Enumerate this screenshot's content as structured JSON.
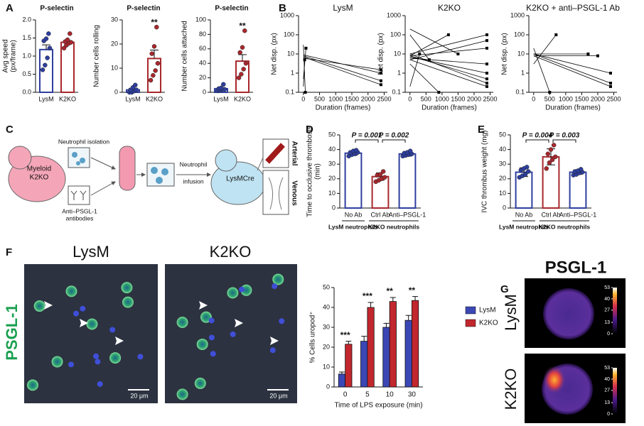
{
  "figure": {
    "panel_labels": [
      "A",
      "B",
      "C",
      "D",
      "E",
      "F",
      "G"
    ],
    "diagram": {
      "donor": [
        "Myeloid",
        "K2KO"
      ],
      "isolation": "Neutrophil isolation",
      "antibodies": [
        "Anti–PSGL-1",
        "antibodies"
      ],
      "infusion": [
        "Neutrophil",
        "infusion"
      ],
      "recipient": "LysMCre",
      "arterial": "Arterial",
      "venous": "Venous"
    },
    "micrographs": {
      "stain": "PSGL-1",
      "titles": [
        "LysM",
        "K2KO"
      ],
      "scale_bars": [
        "20 μm",
        "20 μm"
      ]
    },
    "heatmaps": {
      "title": "PSGL-1",
      "rows": [
        "LysM",
        "K2KO"
      ]
    }
  },
  "chart_data": [
    {
      "type": "bar",
      "title": "P-selectin",
      "ylabel": [
        "Avg speed",
        "(px/frame)"
      ],
      "categories": [
        "LysM",
        "K2KO"
      ],
      "values": [
        1.18,
        1.38
      ],
      "errors": [
        0.13,
        0.05
      ],
      "error_bars": "up",
      "points": [
        [
          0.62,
          0.75,
          0.95,
          1.22,
          1.42,
          1.48,
          1.62
        ],
        [
          1.22,
          1.3,
          1.35,
          1.38,
          1.4,
          1.45,
          1.62
        ]
      ],
      "colors": [
        "#2e3f9e",
        "#a8282d"
      ],
      "ylim": [
        0,
        2
      ],
      "yticks": [
        {
          "value": 0,
          "label": "0.0"
        },
        0.5,
        {
          "value": 1,
          "label": "1.0"
        },
        1.5,
        {
          "value": 2,
          "label": "2.0"
        }
      ]
    },
    {
      "type": "bar",
      "title": "P-selectin",
      "ylabel": [
        "Number cells rolling"
      ],
      "categories": [
        "LysM",
        "K2KO"
      ],
      "values": [
        1,
        14
      ],
      "errors": [
        0.6,
        3.5
      ],
      "error_bars": "up",
      "points": [
        [
          0,
          0,
          0.5,
          1,
          1,
          2,
          3
        ],
        [
          5,
          7,
          9,
          12,
          16,
          19,
          27
        ]
      ],
      "colors": [
        "#2e3f9e",
        "#a8282d"
      ],
      "significance": [
        null,
        "**"
      ],
      "ylim": [
        0,
        30
      ],
      "yticks": [
        0,
        10,
        20,
        30
      ]
    },
    {
      "type": "bar",
      "title": "P-selectin",
      "ylabel": [
        "Number cells attached"
      ],
      "categories": [
        "LysM",
        "K2KO"
      ],
      "values": [
        5,
        43
      ],
      "errors": [
        1.5,
        9
      ],
      "error_bars": "up",
      "points": [
        [
          2,
          3,
          4,
          4,
          5,
          6,
          11
        ],
        [
          20,
          25,
          32,
          40,
          55,
          62,
          85
        ]
      ],
      "colors": [
        "#2e3f9e",
        "#a8282d"
      ],
      "significance": [
        null,
        "**"
      ],
      "ylim": [
        0,
        100
      ],
      "yticks": [
        0,
        20,
        40,
        60,
        80,
        100
      ]
    },
    {
      "type": "line",
      "title": "LysM",
      "xlabel": "Duration (frames)",
      "ylabel": "Net disp. (px)",
      "log_y": true,
      "color": "#000000",
      "xlim": [
        -150,
        2600
      ],
      "xticks": [
        0,
        500,
        1000,
        1500,
        2000,
        2500
      ],
      "ylim": [
        0.1,
        1000
      ],
      "yticks": [
        0.1,
        1,
        10,
        100,
        1000
      ],
      "tracks": [
        {
          "x": [
            0,
            2400
          ],
          "values": [
            8,
            0.4
          ]
        },
        {
          "x": [
            0,
            2400
          ],
          "values": [
            7,
            0.25
          ]
        },
        {
          "x": [
            0,
            2400
          ],
          "values": [
            6,
            1.5
          ]
        },
        {
          "x": [
            0,
            2400
          ],
          "values": [
            9,
            1
          ]
        },
        {
          "x": [
            0,
            60
          ],
          "values": [
            30,
            0.1
          ]
        },
        {
          "x": [
            0,
            40
          ],
          "values": [
            0.2,
            5
          ]
        },
        {
          "x": [
            0,
            80
          ],
          "values": [
            0.5,
            20
          ]
        }
      ]
    },
    {
      "type": "line",
      "title": "K2KO",
      "xlabel": "Duration (frames)",
      "ylabel": "Net disp. (px)",
      "log_y": true,
      "color": "#000000",
      "xlim": [
        -150,
        2600
      ],
      "xticks": [
        0,
        500,
        1000,
        1500,
        2000,
        2500
      ],
      "ylim": [
        0.1,
        1000
      ],
      "yticks": [
        0.1,
        1,
        10,
        100,
        1000
      ],
      "tracks": [
        {
          "x": [
            0,
            2400
          ],
          "values": [
            10,
            100
          ]
        },
        {
          "x": [
            0,
            2400
          ],
          "values": [
            5,
            50
          ]
        },
        {
          "x": [
            0,
            2400
          ],
          "values": [
            8,
            20
          ]
        },
        {
          "x": [
            0,
            2400
          ],
          "values": [
            6,
            3
          ]
        },
        {
          "x": [
            0,
            2400
          ],
          "values": [
            7,
            1
          ]
        },
        {
          "x": [
            0,
            2400
          ],
          "values": [
            10,
            0.3
          ]
        },
        {
          "x": [
            0,
            2400
          ],
          "values": [
            5,
            0.2
          ]
        },
        {
          "x": [
            0,
            2400
          ],
          "values": [
            8,
            0.5
          ]
        },
        {
          "x": [
            0,
            600
          ],
          "values": [
            100,
            5
          ]
        },
        {
          "x": [
            0,
            1500
          ],
          "values": [
            200,
            10
          ]
        },
        {
          "x": [
            0,
            300
          ],
          "values": [
            0.2,
            10
          ]
        },
        {
          "x": [
            0,
            1200
          ],
          "values": [
            8,
            100
          ]
        },
        {
          "x": [
            0,
            900
          ],
          "values": [
            3,
            0.1
          ]
        }
      ]
    },
    {
      "type": "line",
      "title": "K2KO + anti–PSGL-1 Ab",
      "xlabel": "Duration (frames)",
      "ylabel": "Net disp. (px)",
      "log_y": true,
      "color": "#000000",
      "xlim": [
        -150,
        2600
      ],
      "xticks": [
        0,
        500,
        1000,
        1500,
        2000,
        2500
      ],
      "ylim": [
        0.1,
        1000
      ],
      "yticks": [
        0.1,
        1,
        10,
        100,
        1000
      ],
      "tracks": [
        {
          "x": [
            0,
            2400
          ],
          "values": [
            10,
            0.3
          ]
        },
        {
          "x": [
            0,
            2400
          ],
          "values": [
            8,
            0.2
          ]
        },
        {
          "x": [
            0,
            2400
          ],
          "values": [
            10,
            1
          ]
        },
        {
          "x": [
            0,
            2000
          ],
          "values": [
            8,
            8
          ]
        },
        {
          "x": [
            0,
            1700
          ],
          "values": [
            10,
            10
          ]
        },
        {
          "x": [
            0,
            700
          ],
          "values": [
            3,
            100
          ]
        },
        {
          "x": [
            0,
            500
          ],
          "values": [
            20,
            0.1
          ]
        }
      ]
    },
    {
      "type": "bar",
      "ylabel": [
        "Time to occlusive thrombosis",
        "(min)"
      ],
      "categories": [
        "No Ab",
        "Ctrl Ab",
        "Anti–PSGL-1"
      ],
      "groups": [
        {
          "name": "LysM neutrophils",
          "categories": [
            "No Ab"
          ]
        },
        {
          "name": "K2KO neutrophils",
          "categories": [
            "Ctrl Ab",
            "Anti–PSGL-1"
          ]
        }
      ],
      "values": [
        37.5,
        21.5,
        37
      ],
      "errors": [
        1.5,
        2.5,
        1.5
      ],
      "error_bars": "both",
      "points": [
        [
          35.5,
          36.5,
          37,
          38,
          38,
          39,
          39.5
        ],
        [
          18,
          19,
          20,
          21,
          22.5,
          23,
          25
        ],
        [
          35.5,
          36,
          36.5,
          37,
          37.5,
          38,
          39
        ]
      ],
      "colors": [
        "#2e3f9e",
        "#a8282d",
        "#2e3f9e"
      ],
      "comparisons": [
        {
          "between": [
            "No Ab",
            "Ctrl Ab"
          ],
          "label": "P = 0.001"
        },
        {
          "between": [
            "Ctrl Ab",
            "Anti–PSGL-1"
          ],
          "label": "P = 0.002"
        }
      ],
      "ylim": [
        0,
        50
      ],
      "yticks": [
        0,
        10,
        20,
        30,
        40,
        50
      ]
    },
    {
      "type": "bar",
      "ylabel": [
        "IVC thrombus weight (mg)"
      ],
      "categories": [
        "No Ab",
        "Ctrl Ab",
        "Anti–PSGL-1"
      ],
      "groups": [
        {
          "name": "LysM neutrophils",
          "categories": [
            "No Ab"
          ]
        },
        {
          "name": "K2KO neutrophils",
          "categories": [
            "Ctrl Ab",
            "Anti–PSGL-1"
          ]
        }
      ],
      "values": [
        24.5,
        35,
        24.5
      ],
      "errors": [
        3,
        5.5,
        1.5
      ],
      "error_bars": "both",
      "points": [
        [
          21,
          22,
          23,
          25,
          26,
          27,
          28
        ],
        [
          27,
          31,
          33,
          35,
          37,
          40,
          43
        ],
        [
          22.5,
          23,
          24,
          24.5,
          25,
          25.5,
          26.5
        ]
      ],
      "colors": [
        "#2e3f9e",
        "#a8282d",
        "#2e3f9e"
      ],
      "comparisons": [
        {
          "between": [
            "No Ab",
            "Ctrl Ab"
          ],
          "label": "P = 0.004"
        },
        {
          "between": [
            "Ctrl Ab",
            "Anti–PSGL-1"
          ],
          "label": "P = 0.003"
        }
      ],
      "ylim": [
        0,
        50
      ],
      "yticks": [
        0,
        10,
        20,
        30,
        40,
        50
      ]
    },
    {
      "type": "grouped_bar",
      "xlabel": "Time of LPS exposure (min)",
      "ylabel": [
        "% Cells uropod⁺"
      ],
      "categories": [
        "0",
        "5",
        "10",
        "30"
      ],
      "series": [
        {
          "name": "LysM",
          "color": "#3b47b5",
          "values": [
            6.5,
            23,
            30,
            33.5
          ],
          "errors": [
            1,
            2.5,
            2,
            2.5
          ]
        },
        {
          "name": "K2KO",
          "color": "#c1272d",
          "values": [
            21.5,
            40,
            43,
            43.5
          ],
          "errors": [
            1.5,
            2.5,
            2,
            2
          ]
        }
      ],
      "significance": [
        "***",
        "***",
        "**",
        "**"
      ],
      "ylim": [
        0,
        50
      ],
      "yticks": [
        0,
        10,
        20,
        30,
        40,
        50
      ]
    },
    {
      "type": "colorbar",
      "ylim": [
        0,
        53
      ],
      "yticks": [
        53,
        40,
        27,
        13,
        0
      ]
    },
    {
      "type": "colorbar",
      "ylim": [
        0,
        53
      ],
      "yticks": [
        53,
        40,
        27,
        13,
        0
      ]
    }
  ]
}
